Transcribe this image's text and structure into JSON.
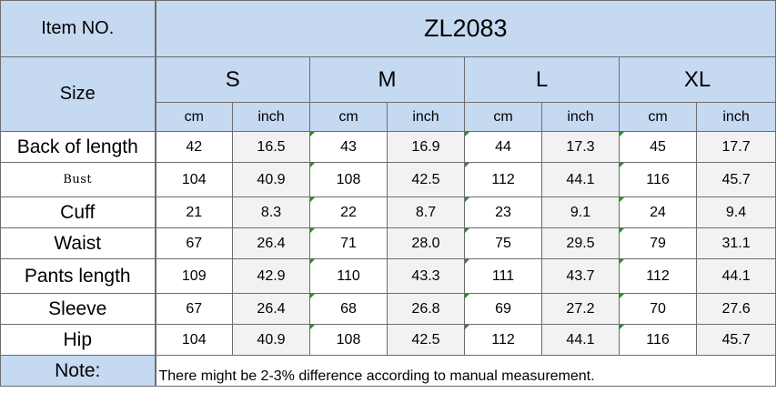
{
  "header": {
    "item_label": "Item NO.",
    "item_code": "ZL2083",
    "size_label": "Size"
  },
  "sizes": [
    "S",
    "M",
    "L",
    "XL"
  ],
  "units": [
    "cm",
    "inch",
    "cm",
    "inch",
    "cm",
    "inch",
    "cm",
    "inch"
  ],
  "rows": [
    {
      "label": "Back of length",
      "values": [
        "42",
        "16.5",
        "43",
        "16.9",
        "44",
        "17.3",
        "45",
        "17.7"
      ]
    },
    {
      "label": "Bust",
      "values": [
        "104",
        "40.9",
        "108",
        "42.5",
        "112",
        "44.1",
        "116",
        "45.7"
      ]
    },
    {
      "label": "Cuff",
      "values": [
        "21",
        "8.3",
        "22",
        "8.7",
        "23",
        "9.1",
        "24",
        "9.4"
      ]
    },
    {
      "label": "Waist",
      "values": [
        "67",
        "26.4",
        "71",
        "28.0",
        "75",
        "29.5",
        "79",
        "31.1"
      ]
    },
    {
      "label": "Pants length",
      "values": [
        "109",
        "42.9",
        "110",
        "43.3",
        "111",
        "43.7",
        "112",
        "44.1"
      ]
    },
    {
      "label": "Sleeve",
      "values": [
        "67",
        "26.4",
        "68",
        "26.8",
        "69",
        "27.2",
        "70",
        "27.6"
      ]
    },
    {
      "label": "Hip",
      "values": [
        "104",
        "40.9",
        "108",
        "42.5",
        "112",
        "44.1",
        "116",
        "45.7"
      ]
    }
  ],
  "note": {
    "label": "Note:",
    "text": "There might be 2-3% difference according to manual measurement."
  },
  "colors": {
    "header_blue": "#c5d9f1",
    "inch_grey": "#f2f2f2",
    "border": "#6d6d6d",
    "marker_green": "#2e8b2e"
  }
}
